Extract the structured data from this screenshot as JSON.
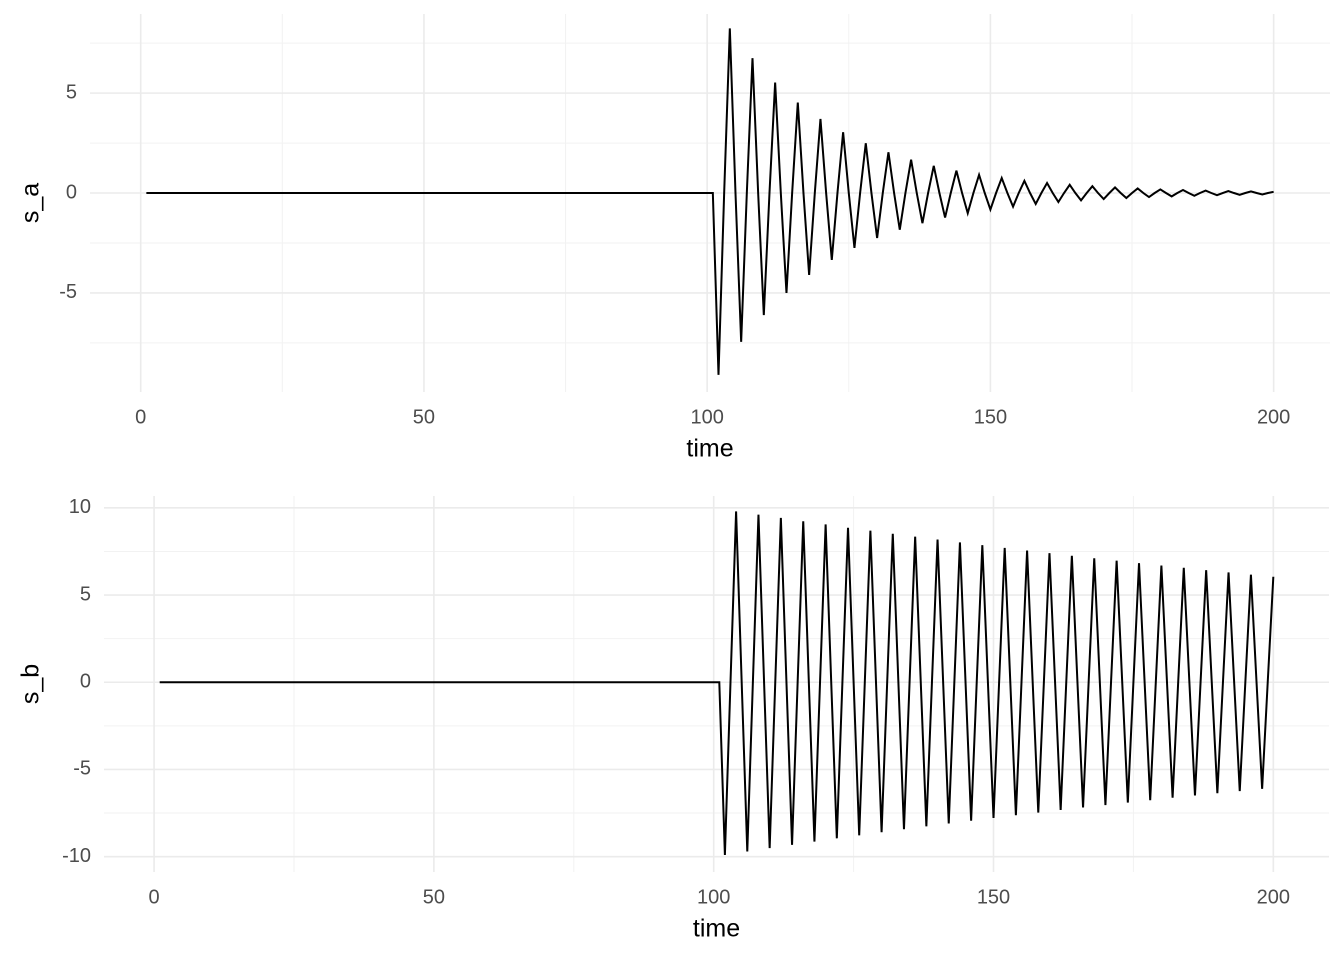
{
  "chart_data": [
    {
      "type": "line",
      "x_label": "time",
      "y_label": "s_a",
      "x": [
        1,
        2,
        3,
        4,
        5,
        6,
        7,
        8,
        9,
        10,
        11,
        12,
        13,
        14,
        15,
        16,
        17,
        18,
        19,
        20,
        21,
        22,
        23,
        24,
        25,
        26,
        27,
        28,
        29,
        30,
        31,
        32,
        33,
        34,
        35,
        36,
        37,
        38,
        39,
        40,
        41,
        42,
        43,
        44,
        45,
        46,
        47,
        48,
        49,
        50,
        51,
        52,
        53,
        54,
        55,
        56,
        57,
        58,
        59,
        60,
        61,
        62,
        63,
        64,
        65,
        66,
        67,
        68,
        69,
        70,
        71,
        72,
        73,
        74,
        75,
        76,
        77,
        78,
        79,
        80,
        81,
        82,
        83,
        84,
        85,
        86,
        87,
        88,
        89,
        90,
        91,
        92,
        93,
        94,
        95,
        96,
        97,
        98,
        99,
        100,
        101,
        102,
        103,
        104,
        105,
        106,
        107,
        108,
        109,
        110,
        111,
        112,
        113,
        114,
        115,
        116,
        117,
        118,
        119,
        120,
        121,
        122,
        123,
        124,
        125,
        126,
        127,
        128,
        129,
        130,
        131,
        132,
        133,
        134,
        135,
        136,
        137,
        138,
        139,
        140,
        141,
        142,
        143,
        144,
        145,
        146,
        147,
        148,
        149,
        150,
        151,
        152,
        153,
        154,
        155,
        156,
        157,
        158,
        159,
        160,
        161,
        162,
        163,
        164,
        165,
        166,
        167,
        168,
        169,
        170,
        171,
        172,
        173,
        174,
        175,
        176,
        177,
        178,
        179,
        180,
        181,
        182,
        183,
        184,
        185,
        186,
        187,
        188,
        189,
        190,
        191,
        192,
        193,
        194,
        195,
        196,
        197,
        198,
        199,
        200
      ],
      "series": [
        {
          "color": "#000000",
          "values": [
            0,
            0,
            0,
            0,
            0,
            0,
            0,
            0,
            0,
            0,
            0,
            0,
            0,
            0,
            0,
            0,
            0,
            0,
            0,
            0,
            0,
            0,
            0,
            0,
            0,
            0,
            0,
            0,
            0,
            0,
            0,
            0,
            0,
            0,
            0,
            0,
            0,
            0,
            0,
            0,
            0,
            0,
            0,
            0,
            0,
            0,
            0,
            0,
            0,
            0,
            0,
            0,
            0,
            0,
            0,
            0,
            0,
            0,
            0,
            0,
            0,
            0,
            0,
            0,
            0,
            0,
            0,
            0,
            0,
            0,
            0,
            0,
            0,
            0,
            0,
            0,
            0,
            0,
            0,
            0,
            0,
            0,
            0,
            0,
            0,
            0,
            0,
            0,
            0,
            0,
            0,
            0,
            0,
            0,
            0,
            0,
            0,
            0,
            0,
            0,
            0,
            -9.1,
            0,
            8.24,
            0,
            -7.45,
            0,
            6.75,
            0,
            -6.11,
            0,
            5.53,
            0,
            -5.0,
            0,
            4.53,
            0,
            -4.1,
            0,
            3.71,
            0,
            -3.35,
            0,
            3.04,
            0,
            -2.75,
            0,
            2.49,
            0,
            -2.25,
            0,
            2.04,
            0,
            -1.84,
            0,
            1.67,
            0,
            -1.51,
            0,
            1.36,
            0,
            -1.23,
            0,
            1.12,
            0,
            -1.01,
            0,
            0.91,
            0,
            -0.83,
            0,
            0.75,
            0,
            -0.68,
            0,
            0.61,
            0,
            -0.55,
            0,
            0.5,
            0,
            -0.45,
            0,
            0.41,
            0,
            -0.37,
            0,
            0.34,
            0,
            -0.3,
            0,
            0.28,
            0,
            -0.25,
            0,
            0.23,
            0,
            -0.2,
            0,
            0.18,
            0,
            -0.17,
            0,
            0.15,
            0,
            -0.14,
            0,
            0.12,
            0,
            -0.11,
            0,
            0.1,
            0,
            -0.09,
            0,
            0.08,
            0,
            -0.07,
            0,
            0.06
          ]
        }
      ],
      "xlim": [
        -8.95,
        209.95
      ],
      "xticks": [
        0,
        50,
        100,
        150,
        200
      ],
      "ylim": [
        -9.96,
        8.96
      ],
      "yticks": [
        -5,
        0,
        5
      ],
      "grid": true
    },
    {
      "type": "line",
      "x_label": "time",
      "y_label": "s_b",
      "x": [
        1,
        2,
        3,
        4,
        5,
        6,
        7,
        8,
        9,
        10,
        11,
        12,
        13,
        14,
        15,
        16,
        17,
        18,
        19,
        20,
        21,
        22,
        23,
        24,
        25,
        26,
        27,
        28,
        29,
        30,
        31,
        32,
        33,
        34,
        35,
        36,
        37,
        38,
        39,
        40,
        41,
        42,
        43,
        44,
        45,
        46,
        47,
        48,
        49,
        50,
        51,
        52,
        53,
        54,
        55,
        56,
        57,
        58,
        59,
        60,
        61,
        62,
        63,
        64,
        65,
        66,
        67,
        68,
        69,
        70,
        71,
        72,
        73,
        74,
        75,
        76,
        77,
        78,
        79,
        80,
        81,
        82,
        83,
        84,
        85,
        86,
        87,
        88,
        89,
        90,
        91,
        92,
        93,
        94,
        95,
        96,
        97,
        98,
        99,
        100,
        101,
        102,
        103,
        104,
        105,
        106,
        107,
        108,
        109,
        110,
        111,
        112,
        113,
        114,
        115,
        116,
        117,
        118,
        119,
        120,
        121,
        122,
        123,
        124,
        125,
        126,
        127,
        128,
        129,
        130,
        131,
        132,
        133,
        134,
        135,
        136,
        137,
        138,
        139,
        140,
        141,
        142,
        143,
        144,
        145,
        146,
        147,
        148,
        149,
        150,
        151,
        152,
        153,
        154,
        155,
        156,
        157,
        158,
        159,
        160,
        161,
        162,
        163,
        164,
        165,
        166,
        167,
        168,
        169,
        170,
        171,
        172,
        173,
        174,
        175,
        176,
        177,
        178,
        179,
        180,
        181,
        182,
        183,
        184,
        185,
        186,
        187,
        188,
        189,
        190,
        191,
        192,
        193,
        194,
        195,
        196,
        197,
        198,
        199,
        200
      ],
      "series": [
        {
          "color": "#000000",
          "values": [
            0,
            0,
            0,
            0,
            0,
            0,
            0,
            0,
            0,
            0,
            0,
            0,
            0,
            0,
            0,
            0,
            0,
            0,
            0,
            0,
            0,
            0,
            0,
            0,
            0,
            0,
            0,
            0,
            0,
            0,
            0,
            0,
            0,
            0,
            0,
            0,
            0,
            0,
            0,
            0,
            0,
            0,
            0,
            0,
            0,
            0,
            0,
            0,
            0,
            0,
            0,
            0,
            0,
            0,
            0,
            0,
            0,
            0,
            0,
            0,
            0,
            0,
            0,
            0,
            0,
            0,
            0,
            0,
            0,
            0,
            0,
            0,
            0,
            0,
            0,
            0,
            0,
            0,
            0,
            0,
            0,
            0,
            0,
            0,
            0,
            0,
            0,
            0,
            0,
            0,
            0,
            0,
            0,
            0,
            0,
            0,
            0,
            0,
            0,
            0,
            0,
            -9.9,
            0,
            9.8,
            0,
            -9.7,
            0,
            9.61,
            0,
            -9.51,
            0,
            9.42,
            0,
            -9.32,
            0,
            9.23,
            0,
            -9.14,
            0,
            9.05,
            0,
            -8.95,
            0,
            8.86,
            0,
            -8.78,
            0,
            8.69,
            0,
            -8.6,
            0,
            8.51,
            0,
            -8.43,
            0,
            8.35,
            0,
            -8.26,
            0,
            8.18,
            0,
            -8.1,
            0,
            8.02,
            0,
            -7.94,
            0,
            7.86,
            0,
            -7.78,
            0,
            7.7,
            0,
            -7.62,
            0,
            7.55,
            0,
            -7.47,
            0,
            7.4,
            0,
            -7.32,
            0,
            7.25,
            0,
            -7.18,
            0,
            7.11,
            0,
            -7.04,
            0,
            6.97,
            0,
            -6.9,
            0,
            6.83,
            0,
            -6.76,
            0,
            6.69,
            0,
            -6.62,
            0,
            6.56,
            0,
            -6.49,
            0,
            6.43,
            0,
            -6.36,
            0,
            6.3,
            0,
            -6.24,
            0,
            6.17,
            0,
            -6.11,
            0,
            6.05
          ]
        }
      ],
      "xlim": [
        -8.95,
        209.95
      ],
      "xticks": [
        0,
        50,
        100,
        150,
        200
      ],
      "ylim": [
        -10.88,
        10.68
      ],
      "yticks": [
        -10,
        -5,
        0,
        5,
        10
      ],
      "grid": true
    }
  ]
}
